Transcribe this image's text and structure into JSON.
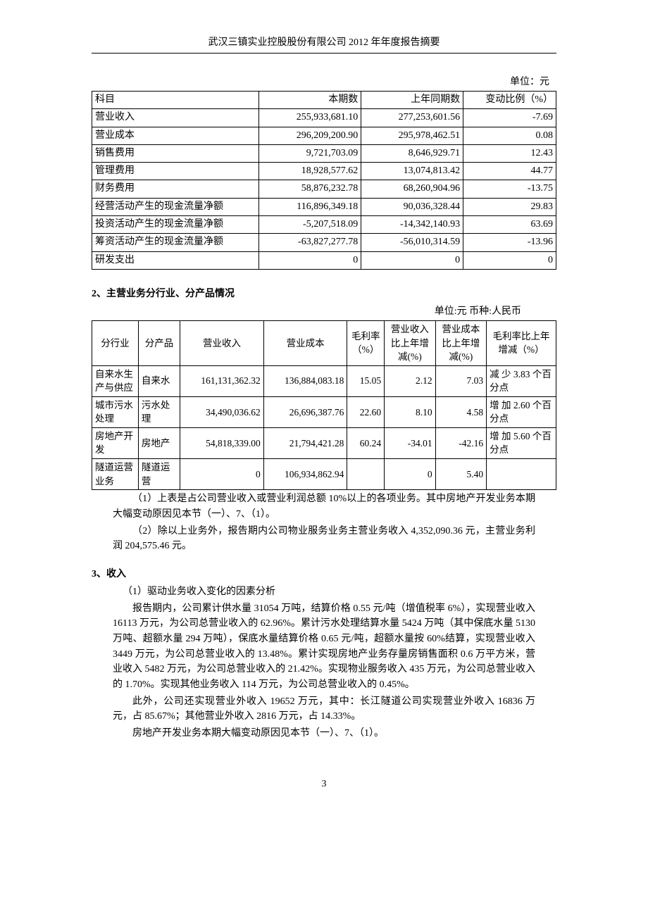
{
  "header": {
    "title": "武汉三镇实业控股股份有限公司 2012 年年度报告摘要"
  },
  "table1": {
    "unit_label": "单位：元",
    "columns": [
      "科目",
      "本期数",
      "上年同期数",
      "变动比例（%）"
    ],
    "col_widths": [
      "36%",
      "22%",
      "22%",
      "20%"
    ],
    "rows": [
      [
        "营业收入",
        "255,933,681.10",
        "277,253,601.56",
        "-7.69"
      ],
      [
        "营业成本",
        "296,209,200.90",
        "295,978,462.51",
        "0.08"
      ],
      [
        "销售费用",
        "9,721,703.09",
        "8,646,929.71",
        "12.43"
      ],
      [
        "管理费用",
        "18,928,577.62",
        "13,074,813.42",
        "44.77"
      ],
      [
        "财务费用",
        "58,876,232.78",
        "68,260,904.96",
        "-13.75"
      ],
      [
        "经营活动产生的现金流量净额",
        "116,896,349.18",
        "90,036,328.44",
        "29.83"
      ],
      [
        "投资活动产生的现金流量净额",
        "-5,207,518.09",
        "-14,342,140.93",
        "63.69"
      ],
      [
        "筹资活动产生的现金流量净额",
        "-63,827,277.78",
        "-56,010,314.59",
        "-13.96"
      ],
      [
        "研发支出",
        "0",
        "0",
        "0"
      ]
    ]
  },
  "section2": {
    "heading": "2、主营业务分行业、分产品情况",
    "unit_label": "单位:元 币种:人民币"
  },
  "table2": {
    "columns": [
      "分行业",
      "分产品",
      "营业收入",
      "营业成本",
      "毛利率（%）",
      "营业收入比上年增减(%)",
      "营业成本比上年增减(%)",
      "毛利率比上年增减（%）"
    ],
    "col_widths": [
      "10%",
      "9%",
      "18%",
      "18%",
      "8%",
      "11%",
      "11%",
      "15%"
    ],
    "rows": [
      [
        "自来水生产与供应",
        "自来水",
        "161,131,362.32",
        "136,884,083.18",
        "15.05",
        "2.12",
        "7.03",
        "减 少 3.83 个百分点"
      ],
      [
        "城市污水处理",
        "污水处理",
        "34,490,036.62",
        "26,696,387.76",
        "22.60",
        "8.10",
        "4.58",
        "增 加 2.60 个百分点"
      ],
      [
        "房地产开发",
        "房地产",
        "54,818,339.00",
        "21,794,421.28",
        "60.24",
        "-34.01",
        "-42.16",
        "增 加 5.60 个百分点"
      ],
      [
        "隧道运营业务",
        "隧道运营",
        "0",
        "106,934,862.94",
        "",
        "0",
        "5.40",
        ""
      ]
    ]
  },
  "notes_after_t2": {
    "n1": "（1）上表是占公司营业收入或营业利润总额 10%以上的各项业务。其中房地产开发业务本期大幅变动原因见本节（一）、7、（1）。",
    "n2": "（2）除以上业务外，报告期内公司物业服务业务主营业务收入 4,352,090.36 元，主营业务利润 204,575.46 元。"
  },
  "section3": {
    "heading": "3、收入",
    "sub1": "（1）驱动业务收入变化的因素分析",
    "p1": "报告期内，公司累计供水量 31054 万吨，结算价格 0.55 元/吨（增值税率 6%），实现营业收入 16113 万元，为公司总营业收入的 62.96%。累计污水处理结算水量 5424 万吨（其中保底水量 5130 万吨、超额水量 294 万吨），保底水量结算价格 0.65 元/吨，超额水量按 60%结算，实现营业收入 3449 万元，为公司总营业收入的 13.48%。累计实现房地产业务存量房销售面积 0.6 万平方米，营业收入 5482 万元，为公司总营业收入的 21.42%。实现物业服务收入 435 万元，为公司总营业收入的 1.70%。实现其他业务收入 114 万元，为公司总营业收入的 0.45%。",
    "p2": "此外，公司还实现营业外收入 19652 万元，其中：长江隧道公司实现营业外收入 16836 万元，占 85.67%；其他营业外收入 2816 万元，占 14.33%。",
    "p3": "房地产开发业务本期大幅变动原因见本节（一）、7、（1）。"
  },
  "footer": {
    "page_number": "3"
  }
}
